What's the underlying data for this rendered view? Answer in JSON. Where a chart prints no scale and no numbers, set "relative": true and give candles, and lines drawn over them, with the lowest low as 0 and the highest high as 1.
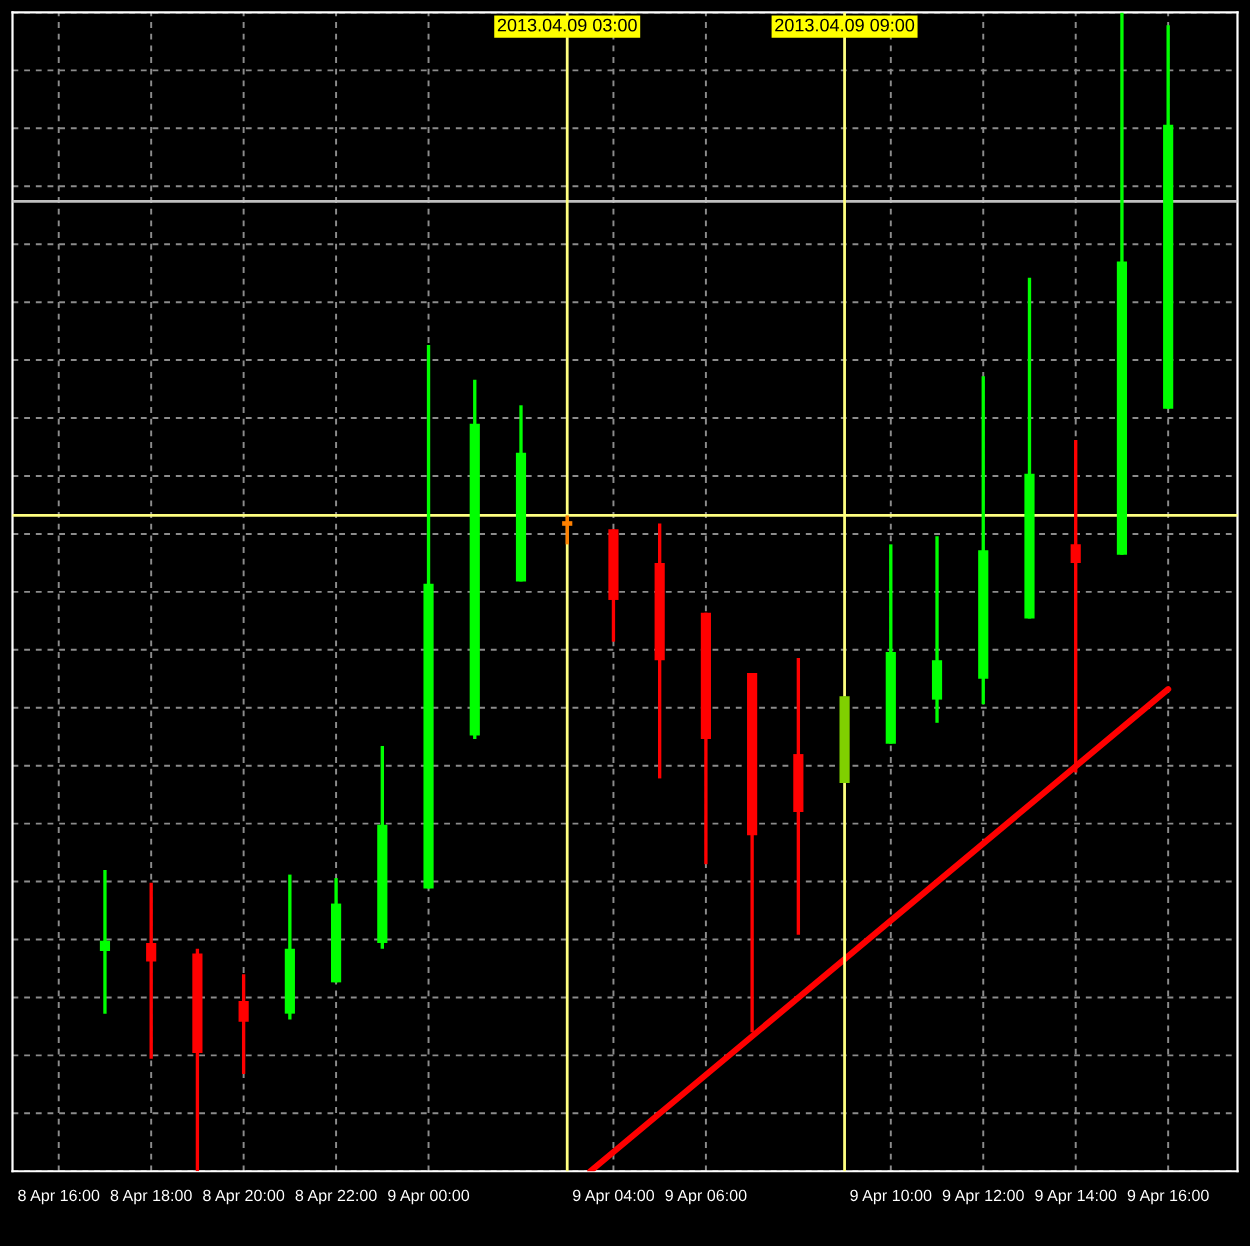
{
  "chart_data": {
    "type": "candlestick",
    "relative": true,
    "x": [
      "2013-04-08T17:00",
      "2013-04-08T18:00",
      "2013-04-08T19:00",
      "2013-04-08T20:00",
      "2013-04-08T21:00",
      "2013-04-08T22:00",
      "2013-04-08T23:00",
      "2013-04-09T00:00",
      "2013-04-09T01:00",
      "2013-04-09T02:00",
      "2013-04-09T03:00",
      "2013-04-09T04:00",
      "2013-04-09T05:00",
      "2013-04-09T06:00",
      "2013-04-09T07:00",
      "2013-04-09T08:00",
      "2013-04-09T09:00",
      "2013-04-09T10:00",
      "2013-04-09T11:00",
      "2013-04-09T12:00",
      "2013-04-09T13:00",
      "2013-04-09T14:00",
      "2013-04-09T15:00",
      "2013-04-09T16:00"
    ],
    "ohlc": [
      [
        0.19,
        0.26,
        0.136,
        0.199
      ],
      [
        0.197,
        0.249,
        0.097,
        0.181
      ],
      [
        0.188,
        0.192,
        0,
        0.102
      ],
      [
        0.147,
        0.17,
        0.084,
        0.129
      ],
      [
        0.136,
        0.256,
        0.131,
        0.192
      ],
      [
        0.163,
        0.253,
        0.163,
        0.231
      ],
      [
        0.197,
        0.367,
        0.192,
        0.299
      ],
      [
        0.244,
        0.713,
        0.244,
        0.507
      ],
      [
        0.376,
        0.683,
        0.373,
        0.645
      ],
      [
        0.509,
        0.661,
        0.509,
        0.62
      ],
      [
        0.561,
        0.566,
        0.541,
        0.557
      ],
      [
        0.554,
        0.554,
        0.457,
        0.493
      ],
      [
        0.525,
        0.559,
        0.339,
        0.441
      ],
      [
        0.482,
        0.482,
        0.265,
        0.373
      ],
      [
        0.43,
        0.43,
        0.12,
        0.29
      ],
      [
        0.36,
        0.443,
        0.204,
        0.31
      ],
      [
        0.335,
        0.41,
        0.335,
        0.41
      ],
      [
        0.369,
        0.541,
        0.369,
        0.448
      ],
      [
        0.407,
        0.548,
        0.387,
        0.441
      ],
      [
        0.425,
        0.686,
        0.403,
        0.536
      ],
      [
        0.477,
        0.771,
        0.477,
        0.602
      ],
      [
        0.541,
        0.631,
        0.344,
        0.525
      ],
      [
        0.532,
        1,
        0.532,
        0.785
      ],
      [
        0.658,
        0.989,
        0.658,
        0.903
      ]
    ],
    "colors": [
      "#00ff00",
      "#ff0000",
      "#ff0000",
      "#ff0000",
      "#00ff00",
      "#00ff00",
      "#00ff00",
      "#00ff00",
      "#00ff00",
      "#00ff00",
      "#ff8000",
      "#ff0000",
      "#ff0000",
      "#ff0000",
      "#ff0000",
      "#ff0000",
      "#80d000",
      "#00ff00",
      "#00ff00",
      "#00ff00",
      "#00ff00",
      "#ff0000",
      "#00ff00",
      "#00ff00"
    ],
    "series": [
      {
        "type": "line",
        "x": [
          "2013-04-09T03:30",
          "2013-04-09T16:00"
        ],
        "values": [
          0,
          0.416
        ],
        "color": "#ff0000"
      }
    ],
    "xlim": [
      "2013-04-08T15:00",
      "2013-04-09T17:30"
    ],
    "xticks": [
      {
        "value": "2013-04-08T16:00",
        "label": "8 Apr 16:00"
      },
      {
        "value": "2013-04-08T18:00",
        "label": "8 Apr 18:00"
      },
      {
        "value": "2013-04-08T20:00",
        "label": "8 Apr 20:00"
      },
      {
        "value": "2013-04-08T22:00",
        "label": "8 Apr 22:00"
      },
      {
        "value": "2013-04-09T00:00",
        "label": "9 Apr 00:00"
      },
      {
        "value": "2013-04-09T04:00",
        "label": "9 Apr 04:00"
      },
      {
        "value": "2013-04-09T06:00",
        "label": "9 Apr 06:00"
      },
      {
        "value": "2013-04-09T10:00",
        "label": "9 Apr 10:00"
      },
      {
        "value": "2013-04-09T12:00",
        "label": "9 Apr 12:00"
      },
      {
        "value": "2013-04-09T14:00",
        "label": "9 Apr 14:00"
      },
      {
        "value": "2013-04-09T16:00",
        "label": "9 Apr 16:00"
      }
    ],
    "ref_lines": [
      {
        "axis": "x",
        "value": "2013-04-09T03:00",
        "label": "2013.04.09 03:00",
        "color": "#ffff80"
      },
      {
        "axis": "x",
        "value": "2013-04-09T09:00",
        "label": "2013.04.09 09:00",
        "color": "#ffff80"
      },
      {
        "axis": "y",
        "value": 0.566,
        "label": null,
        "color": "#ffff80"
      },
      {
        "axis": "y",
        "value": 0.837,
        "label": null,
        "color": "#c0c0c0"
      }
    ],
    "grid": true,
    "tick_labels": "x"
  }
}
